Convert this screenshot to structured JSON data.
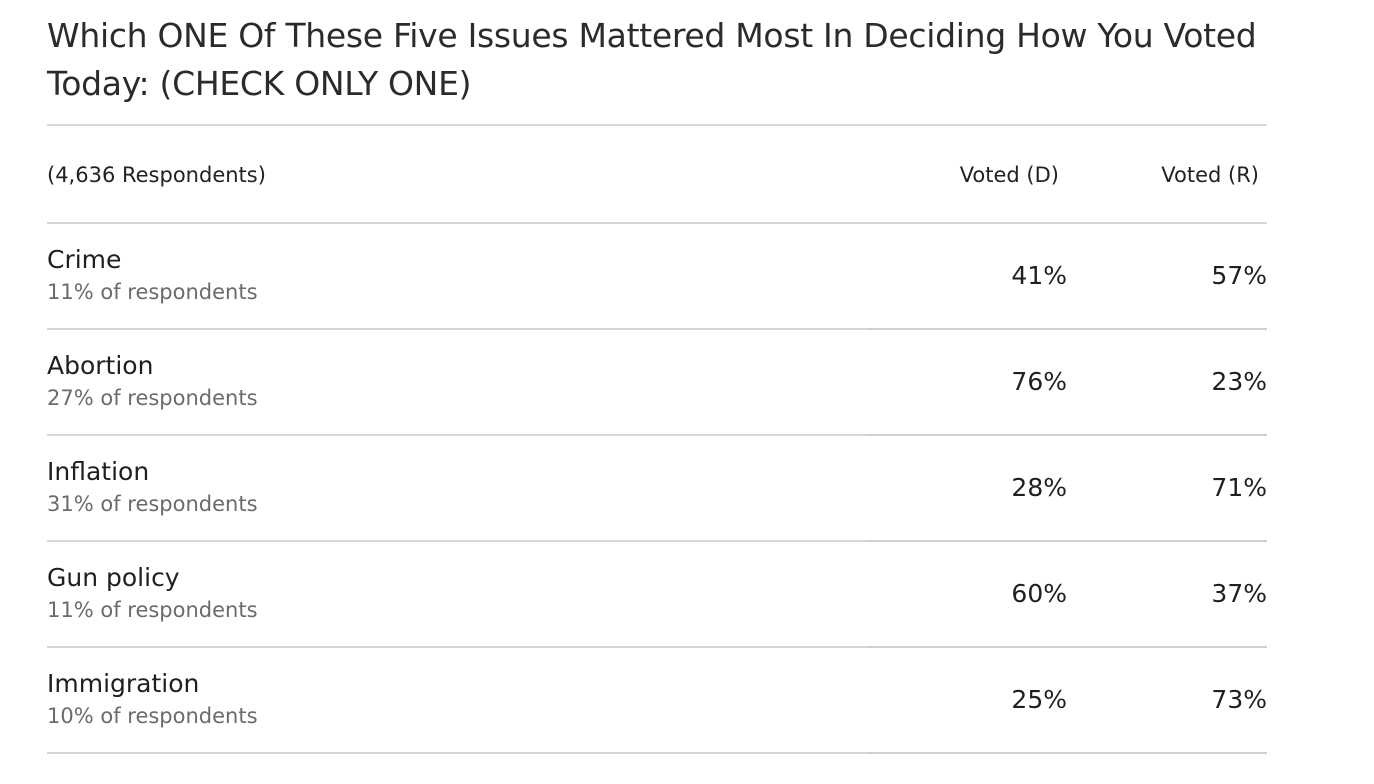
{
  "title": "Which ONE Of These Five Issues Mattered Most In Deciding How You Voted Today: (CHECK ONLY ONE)",
  "respondents_label": "(4,636 Respondents)",
  "columns": [
    "Voted (D)",
    "Voted (R)"
  ],
  "rows": [
    {
      "issue": "Crime",
      "share": "11% of respondents",
      "d": "41%",
      "r": "57%"
    },
    {
      "issue": "Abortion",
      "share": "27% of respondents",
      "d": "76%",
      "r": "23%"
    },
    {
      "issue": "Inflation",
      "share": "31% of respondents",
      "d": "28%",
      "r": "71%"
    },
    {
      "issue": "Gun policy",
      "share": "11% of respondents",
      "d": "60%",
      "r": "37%"
    },
    {
      "issue": "Immigration",
      "share": "10% of respondents",
      "d": "25%",
      "r": "73%"
    }
  ],
  "chart_data": {
    "type": "table",
    "title": "Which ONE Of These Five Issues Mattered Most In Deciding How You Voted Today: (CHECK ONLY ONE)",
    "subtitle": "(4,636 Respondents)",
    "categories": [
      "Crime",
      "Abortion",
      "Inflation",
      "Gun policy",
      "Immigration"
    ],
    "share_of_respondents": [
      11,
      27,
      31,
      11,
      10
    ],
    "series": [
      {
        "name": "Voted (D)",
        "values": [
          41,
          76,
          28,
          60,
          25
        ]
      },
      {
        "name": "Voted (R)",
        "values": [
          57,
          23,
          71,
          37,
          73
        ]
      }
    ]
  }
}
